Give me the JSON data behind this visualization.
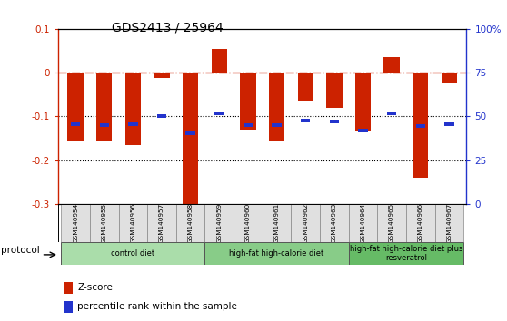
{
  "title": "GDS2413 / 25964",
  "samples": [
    "GSM140954",
    "GSM140955",
    "GSM140956",
    "GSM140957",
    "GSM140958",
    "GSM140959",
    "GSM140960",
    "GSM140961",
    "GSM140962",
    "GSM140963",
    "GSM140964",
    "GSM140965",
    "GSM140966",
    "GSM140967"
  ],
  "zscore": [
    -0.155,
    -0.155,
    -0.165,
    -0.012,
    -0.3,
    0.055,
    -0.13,
    -0.155,
    -0.065,
    -0.08,
    -0.135,
    0.035,
    -0.24,
    -0.025
  ],
  "percentile_y": [
    -0.118,
    -0.12,
    -0.118,
    -0.1,
    -0.138,
    -0.094,
    -0.12,
    -0.12,
    -0.11,
    -0.112,
    -0.133,
    -0.094,
    -0.123,
    -0.118
  ],
  "ylim": [
    -0.3,
    0.1
  ],
  "yticks": [
    -0.3,
    -0.2,
    -0.1,
    0.0,
    0.1
  ],
  "ytick_labels_left": [
    "-0.3",
    "-0.2",
    "-0.1",
    "0",
    "0.1"
  ],
  "yticks_right_vals": [
    0,
    25,
    50,
    75,
    100
  ],
  "ytick_labels_right": [
    "0",
    "25",
    "50",
    "75",
    "100%"
  ],
  "bar_color": "#cc2200",
  "dot_color": "#2233cc",
  "hline_color": "#cc2200",
  "groups": [
    {
      "label": "control diet",
      "start": 0,
      "end": 5,
      "color": "#aaddaa"
    },
    {
      "label": "high-fat high-calorie diet",
      "start": 5,
      "end": 10,
      "color": "#88cc88"
    },
    {
      "label": "high-fat high-calorie diet plus\nresveratrol",
      "start": 10,
      "end": 14,
      "color": "#66bb66"
    }
  ],
  "protocol_label": "protocol",
  "legend_zscore": "Z-score",
  "legend_percentile": "percentile rank within the sample",
  "bar_width": 0.55
}
